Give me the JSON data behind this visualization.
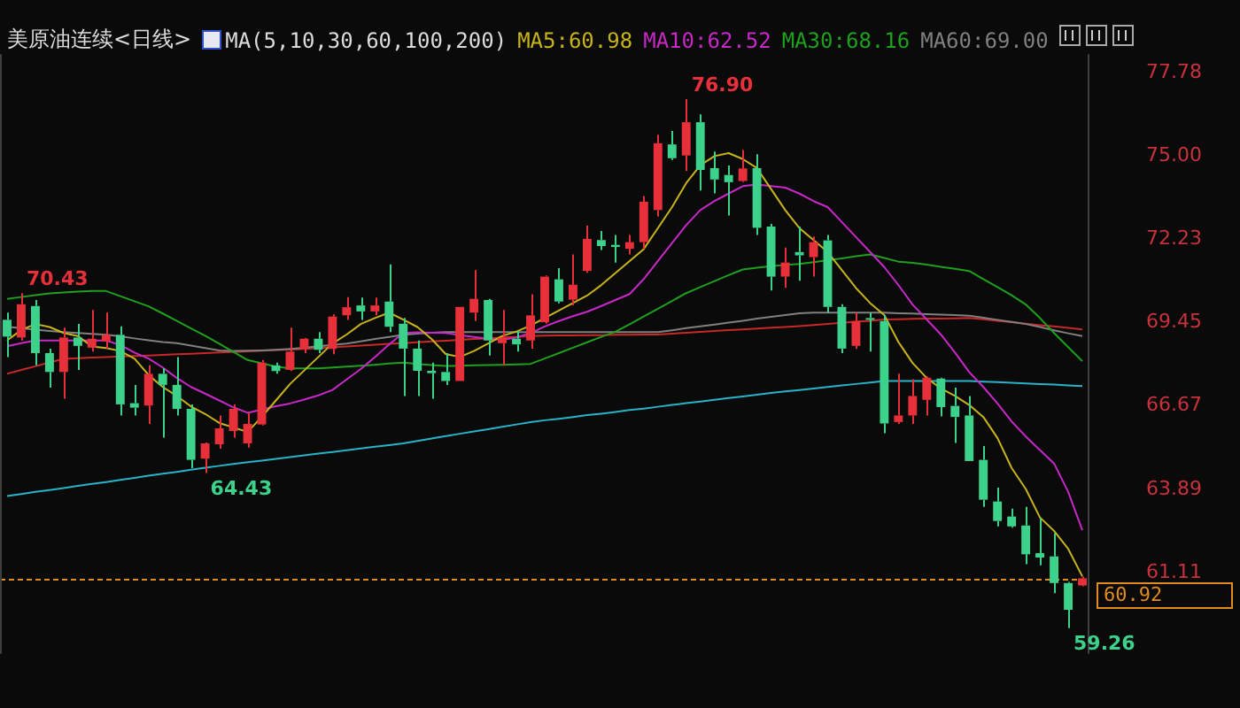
{
  "chart_data": {
    "type": "candlestick",
    "title": "美原油连续<日线>",
    "subtitle": "MA(5,10,30,60,100,200)",
    "categories": [
      null,
      null,
      null,
      null,
      null,
      null,
      null,
      null,
      null,
      null,
      null,
      null,
      null,
      null,
      null,
      null,
      null,
      null,
      null,
      null,
      null,
      null,
      null,
      null,
      null,
      null,
      null,
      null,
      null,
      null,
      null,
      null,
      null,
      null,
      null,
      null,
      null,
      null,
      null,
      null,
      null,
      null,
      null,
      null,
      null,
      null,
      null,
      null,
      null,
      null,
      null,
      null,
      null,
      null,
      null,
      null,
      null,
      null,
      null,
      null,
      null,
      null,
      null,
      null,
      null,
      null,
      null,
      null,
      null,
      null,
      null,
      null,
      null,
      null,
      null,
      null,
      null
    ],
    "ohlc": [
      [
        69.54,
        69.78,
        68.3,
        68.98
      ],
      [
        68.95,
        70.43,
        68.85,
        70.06
      ],
      [
        70.0,
        70.2,
        68.02,
        68.43
      ],
      [
        68.43,
        68.58,
        67.28,
        67.8
      ],
      [
        67.8,
        69.28,
        66.91,
        68.95
      ],
      [
        68.95,
        69.4,
        67.87,
        68.67
      ],
      [
        68.61,
        69.87,
        68.48,
        68.91
      ],
      [
        68.82,
        69.78,
        68.58,
        69.04
      ],
      [
        69.04,
        69.32,
        66.35,
        66.72
      ],
      [
        66.76,
        67.37,
        66.35,
        66.61
      ],
      [
        66.68,
        68.02,
        66.07,
        67.74
      ],
      [
        67.74,
        67.93,
        65.61,
        67.37
      ],
      [
        67.37,
        68.3,
        66.35,
        66.57
      ],
      [
        66.57,
        66.72,
        64.59,
        64.87
      ],
      [
        64.91,
        65.45,
        64.43,
        65.42
      ],
      [
        65.39,
        66.35,
        65.24,
        65.92
      ],
      [
        65.83,
        66.72,
        65.61,
        66.57
      ],
      [
        65.42,
        66.44,
        65.28,
        66.07
      ],
      [
        66.05,
        68.2,
        66.02,
        68.11
      ],
      [
        68.02,
        68.11,
        67.74,
        67.83
      ],
      [
        67.87,
        69.28,
        67.83,
        68.48
      ],
      [
        68.57,
        68.94,
        68.43,
        68.91
      ],
      [
        68.91,
        69.13,
        68.43,
        68.54
      ],
      [
        68.57,
        69.72,
        68.39,
        69.65
      ],
      [
        69.69,
        70.3,
        69.54,
        69.96
      ],
      [
        70.02,
        70.28,
        69.54,
        69.82
      ],
      [
        69.82,
        70.28,
        69.69,
        70.02
      ],
      [
        70.15,
        71.39,
        69.13,
        69.31
      ],
      [
        69.41,
        69.6,
        67.0,
        68.58
      ],
      [
        68.58,
        68.85,
        67.0,
        67.84
      ],
      [
        67.84,
        68.11,
        66.91,
        67.76
      ],
      [
        67.8,
        68.43,
        67.37,
        67.5
      ],
      [
        67.5,
        69.97,
        67.5,
        69.97
      ],
      [
        69.78,
        71.2,
        69.5,
        70.24
      ],
      [
        70.2,
        70.24,
        68.35,
        68.85
      ],
      [
        68.76,
        69.87,
        68.02,
        68.94
      ],
      [
        68.91,
        69.17,
        68.48,
        68.72
      ],
      [
        68.85,
        70.39,
        68.58,
        69.69
      ],
      [
        69.46,
        71.02,
        69.41,
        70.98
      ],
      [
        70.89,
        71.26,
        70.09,
        70.15
      ],
      [
        70.21,
        71.72,
        70.02,
        70.71
      ],
      [
        71.17,
        72.69,
        71.11,
        72.24
      ],
      [
        72.2,
        72.5,
        71.87,
        72.0
      ],
      [
        72.04,
        72.37,
        71.45,
        71.97
      ],
      [
        71.91,
        72.37,
        71.72,
        72.13
      ],
      [
        72.13,
        73.67,
        71.91,
        73.48
      ],
      [
        73.2,
        75.71,
        72.98,
        75.43
      ],
      [
        75.39,
        75.84,
        74.87,
        74.93
      ],
      [
        75.02,
        76.9,
        74.5,
        76.13
      ],
      [
        76.13,
        76.39,
        73.85,
        74.54
      ],
      [
        74.6,
        75.15,
        73.76,
        74.22
      ],
      [
        74.37,
        74.69,
        73.02,
        74.13
      ],
      [
        74.17,
        75.2,
        74.13,
        74.59
      ],
      [
        74.6,
        75.06,
        72.37,
        72.61
      ],
      [
        72.65,
        72.74,
        70.52,
        70.98
      ],
      [
        70.98,
        71.95,
        70.61,
        71.45
      ],
      [
        71.8,
        72.65,
        70.84,
        71.69
      ],
      [
        71.63,
        72.32,
        70.98,
        72.13
      ],
      [
        72.19,
        72.37,
        69.78,
        69.97
      ],
      [
        69.97,
        70.06,
        68.43,
        68.58
      ],
      [
        68.67,
        69.78,
        68.57,
        69.5
      ],
      [
        69.6,
        69.78,
        68.48,
        69.55
      ],
      [
        69.5,
        69.69,
        65.76,
        66.08
      ],
      [
        66.13,
        67.74,
        66.07,
        66.35
      ],
      [
        66.35,
        67.56,
        66.07,
        67.0
      ],
      [
        66.87,
        67.65,
        66.35,
        67.61
      ],
      [
        67.58,
        67.61,
        66.32,
        66.63
      ],
      [
        66.67,
        67.28,
        65.43,
        66.3
      ],
      [
        66.35,
        67.0,
        64.83,
        64.83
      ],
      [
        64.87,
        65.33,
        63.3,
        63.54
      ],
      [
        63.48,
        63.94,
        62.65,
        62.83
      ],
      [
        62.98,
        63.24,
        62.61,
        62.65
      ],
      [
        62.68,
        63.3,
        61.39,
        61.72
      ],
      [
        61.76,
        62.92,
        61.35,
        61.61
      ],
      [
        61.65,
        62.42,
        60.42,
        60.76
      ],
      [
        60.76,
        60.8,
        59.26,
        59.87
      ],
      [
        60.68,
        60.98,
        60.65,
        60.92
      ]
    ],
    "colors": [
      "#3cd28c",
      "#e8303a",
      "#3cd28c",
      "#3cd28c",
      "#e8303a",
      "#3cd28c",
      "#e8303a",
      "#e8303a",
      "#3cd28c",
      "#3cd28c",
      "#e8303a",
      "#3cd28c",
      "#3cd28c",
      "#3cd28c",
      "#e8303a",
      "#e8303a",
      "#e8303a",
      "#e8303a",
      "#e8303a",
      "#3cd28c",
      "#e8303a",
      "#e8303a",
      "#3cd28c",
      "#e8303a",
      "#e8303a",
      "#3cd28c",
      "#e8303a",
      "#3cd28c",
      "#3cd28c",
      "#3cd28c",
      "#3cd28c",
      "#3cd28c",
      "#e8303a",
      "#e8303a",
      "#3cd28c",
      "#e8303a",
      "#3cd28c",
      "#e8303a",
      "#e8303a",
      "#3cd28c",
      "#e8303a",
      "#e8303a",
      "#3cd28c",
      "#3cd28c",
      "#e8303a",
      "#e8303a",
      "#e8303a",
      "#3cd28c",
      "#e8303a",
      "#3cd28c",
      "#3cd28c",
      "#3cd28c",
      "#e8303a",
      "#3cd28c",
      "#3cd28c",
      "#e8303a",
      "#3cd28c",
      "#e8303a",
      "#3cd28c",
      "#3cd28c",
      "#e8303a",
      "#3cd28c",
      "#3cd28c",
      "#e8303a",
      "#e8303a",
      "#e8303a",
      "#3cd28c",
      "#3cd28c",
      "#3cd28c",
      "#3cd28c",
      "#3cd28c",
      "#3cd28c",
      "#3cd28c",
      "#3cd28c",
      "#3cd28c",
      "#3cd28c",
      "#e8303a"
    ],
    "series": [
      {
        "type": "line",
        "name": "MA5:60.98",
        "color": "#c8b418",
        "values": [
          68.85,
          69.2,
          69.4,
          69.3,
          69.1,
          69.0,
          68.65,
          68.6,
          68.5,
          68.25,
          67.7,
          67.3,
          67.0,
          66.65,
          66.4,
          66.1,
          65.95,
          65.8,
          66.3,
          66.85,
          67.4,
          67.85,
          68.3,
          68.75,
          69.05,
          69.4,
          69.6,
          69.78,
          69.55,
          69.3,
          68.9,
          68.4,
          68.3,
          68.5,
          68.75,
          69.0,
          69.15,
          69.35,
          69.6,
          69.85,
          70.1,
          70.35,
          70.7,
          71.1,
          71.5,
          71.9,
          72.6,
          73.3,
          74.1,
          74.7,
          75.0,
          75.1,
          74.9,
          74.6,
          73.9,
          73.2,
          72.6,
          72.2,
          71.8,
          71.2,
          70.6,
          70.1,
          69.7,
          68.8,
          68.1,
          67.6,
          67.25,
          67.0,
          66.7,
          66.3,
          65.6,
          64.6,
          63.9,
          62.95,
          62.5,
          61.9,
          60.98
        ]
      },
      {
        "type": "line",
        "name": "MA10:62.52",
        "color": "#c828c8",
        "values": [
          68.66,
          68.76,
          68.85,
          68.85,
          68.85,
          68.85,
          68.85,
          68.85,
          68.7,
          68.45,
          68.25,
          67.95,
          67.6,
          67.3,
          67.08,
          66.85,
          66.62,
          66.44,
          66.55,
          66.66,
          66.75,
          66.88,
          67.02,
          67.2,
          67.55,
          67.9,
          68.3,
          68.72,
          69.1,
          69.12,
          69.11,
          69.1,
          69.03,
          68.97,
          68.91,
          68.87,
          68.95,
          69.1,
          69.32,
          69.5,
          69.66,
          69.81,
          70.0,
          70.2,
          70.4,
          70.9,
          71.5,
          72.1,
          72.7,
          73.2,
          73.5,
          73.75,
          74.0,
          74.05,
          74.0,
          73.95,
          73.75,
          73.5,
          73.3,
          72.8,
          72.3,
          71.8,
          71.3,
          70.7,
          70.05,
          69.55,
          69.05,
          68.45,
          67.8,
          67.3,
          66.75,
          66.15,
          65.65,
          65.2,
          64.75,
          63.8,
          62.52
        ]
      },
      {
        "type": "line",
        "name": "MA30:68.16",
        "color": "#1ea01e",
        "values": [
          70.24,
          70.3,
          70.36,
          70.42,
          70.45,
          70.48,
          70.5,
          70.5,
          70.33,
          70.16,
          69.99,
          69.75,
          69.5,
          69.25,
          69.01,
          68.74,
          68.47,
          68.2,
          68.09,
          67.98,
          67.92,
          67.92,
          67.92,
          67.95,
          67.98,
          68.01,
          68.04,
          68.08,
          68.11,
          68.07,
          68.03,
          68.0,
          68.01,
          68.02,
          68.03,
          68.04,
          68.05,
          68.07,
          68.25,
          68.43,
          68.61,
          68.79,
          68.97,
          69.14,
          69.39,
          69.65,
          69.91,
          70.17,
          70.43,
          70.63,
          70.83,
          71.03,
          71.22,
          71.28,
          71.33,
          71.37,
          71.4,
          71.46,
          71.53,
          71.59,
          71.66,
          71.72,
          71.6,
          71.48,
          71.44,
          71.38,
          71.31,
          71.24,
          71.17,
          70.9,
          70.63,
          70.36,
          70.05,
          69.6,
          69.1,
          68.63,
          68.16
        ]
      },
      {
        "type": "line",
        "name": "MA60:69.00",
        "color": "#808080",
        "values": [
          69.31,
          69.26,
          69.21,
          69.17,
          69.13,
          69.1,
          69.07,
          69.04,
          68.99,
          68.92,
          68.86,
          68.8,
          68.76,
          68.68,
          68.6,
          68.52,
          68.5,
          68.51,
          68.52,
          68.54,
          68.57,
          68.61,
          68.66,
          68.7,
          68.75,
          68.82,
          68.9,
          68.97,
          69.04,
          69.08,
          69.11,
          69.13,
          69.13,
          69.13,
          69.13,
          69.13,
          69.13,
          69.13,
          69.13,
          69.13,
          69.13,
          69.13,
          69.13,
          69.13,
          69.13,
          69.13,
          69.13,
          69.19,
          69.26,
          69.32,
          69.38,
          69.45,
          69.51,
          69.58,
          69.64,
          69.7,
          69.76,
          69.78,
          69.78,
          69.78,
          69.78,
          69.78,
          69.78,
          69.76,
          69.75,
          69.73,
          69.71,
          69.7,
          69.68,
          69.61,
          69.54,
          69.47,
          69.4,
          69.3,
          69.19,
          69.09,
          69.0
        ]
      },
      {
        "type": "line",
        "color": "#c82828",
        "values": [
          67.74,
          67.87,
          67.99,
          68.12,
          68.24,
          68.26,
          68.28,
          68.3,
          68.32,
          68.33,
          68.35,
          68.37,
          68.39,
          68.41,
          68.43,
          68.45,
          68.47,
          68.49,
          68.51,
          68.53,
          68.55,
          68.57,
          68.6,
          68.63,
          68.65,
          68.68,
          68.71,
          68.74,
          68.76,
          68.79,
          68.82,
          68.84,
          68.87,
          68.9,
          68.92,
          68.95,
          68.97,
          69.0,
          69.01,
          69.02,
          69.02,
          69.03,
          69.03,
          69.04,
          69.04,
          69.05,
          69.05,
          69.08,
          69.11,
          69.14,
          69.17,
          69.2,
          69.22,
          69.25,
          69.28,
          69.3,
          69.33,
          69.37,
          69.4,
          69.44,
          69.48,
          69.51,
          69.55,
          69.56,
          69.57,
          69.58,
          69.58,
          69.59,
          69.6,
          69.56,
          69.51,
          69.46,
          69.41,
          69.36,
          69.32,
          69.27,
          69.22
        ]
      },
      {
        "type": "line",
        "color": "#28b4c8",
        "values": [
          63.66,
          63.73,
          63.8,
          63.86,
          63.93,
          64.0,
          64.07,
          64.13,
          64.2,
          64.27,
          64.34,
          64.41,
          64.47,
          64.54,
          64.61,
          64.67,
          64.73,
          64.79,
          64.84,
          64.9,
          64.96,
          65.02,
          65.08,
          65.13,
          65.19,
          65.25,
          65.31,
          65.36,
          65.42,
          65.5,
          65.58,
          65.66,
          65.74,
          65.82,
          65.89,
          65.97,
          66.05,
          66.13,
          66.19,
          66.24,
          66.3,
          66.36,
          66.41,
          66.47,
          66.53,
          66.58,
          66.64,
          66.7,
          66.76,
          66.81,
          66.87,
          66.93,
          66.98,
          67.04,
          67.1,
          67.15,
          67.2,
          67.25,
          67.3,
          67.35,
          67.4,
          67.45,
          67.5,
          67.5,
          67.5,
          67.5,
          67.5,
          67.5,
          67.5,
          67.48,
          67.46,
          67.44,
          67.42,
          67.4,
          67.38,
          67.35,
          67.33
        ]
      }
    ],
    "ylim": [
      58.4,
      78.4
    ],
    "yticks": [
      61.11,
      63.89,
      66.67,
      69.45,
      72.23,
      {
        "value": 75,
        "label": "75.00"
      },
      77.78
    ],
    "tick_labels": "y",
    "legend": "top",
    "ref_lines": [
      {
        "axis": "y",
        "value": 60.92,
        "label": "60.92",
        "color": "#e08c1e",
        "line_style": "dashed"
      }
    ],
    "annotations": [
      "70.43",
      "76.90",
      "64.43",
      "59.26"
    ]
  }
}
